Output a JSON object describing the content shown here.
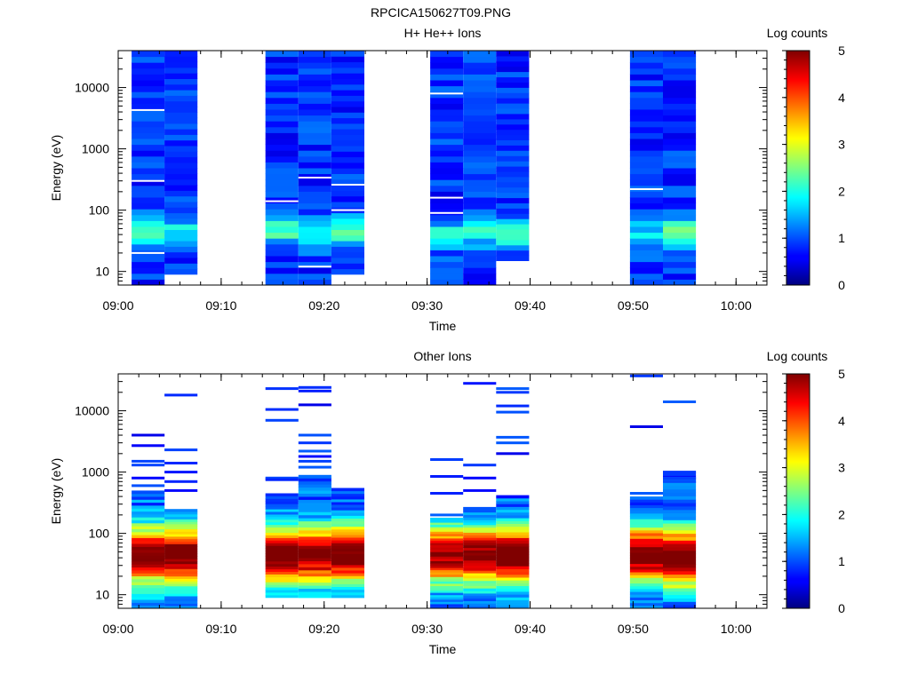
{
  "figure_title": "RPCICA150627T09.PNG",
  "chart_data": [
    {
      "type": "heatmap",
      "title": "H+ He++ Ions",
      "xlabel": "Time",
      "ylabel": "Energy (eV)",
      "y_scale": "log",
      "ylim": [
        6,
        40000
      ],
      "xlim": [
        "09:00",
        "10:03"
      ],
      "x_ticks": [
        "09:00",
        "09:10",
        "09:20",
        "09:30",
        "09:40",
        "09:50",
        "10:00"
      ],
      "y_ticks": [
        "10",
        "100",
        "1000",
        "10000"
      ],
      "colorbar": {
        "label": "Log counts",
        "range": [
          0,
          5
        ],
        "ticks": [
          "0",
          "1",
          "2",
          "3",
          "4",
          "5"
        ]
      },
      "columns": [
        {
          "start": "09:01.3",
          "end": "09:04.5",
          "emin": 6,
          "emax": 40000,
          "peak_energy": 45,
          "peak_level": 2.1,
          "gaps": [
            300,
            4300,
            20
          ]
        },
        {
          "start": "09:04.5",
          "end": "09:07.7",
          "emin": 9,
          "emax": 40000,
          "peak_energy": 45,
          "peak_level": 1.8,
          "gaps": []
        },
        {
          "start": "09:14.3",
          "end": "09:17.5",
          "emin": 6,
          "emax": 40000,
          "peak_energy": 50,
          "peak_level": 2.2,
          "gaps": [
            140
          ]
        },
        {
          "start": "09:17.5",
          "end": "09:20.7",
          "emin": 6,
          "emax": 40000,
          "peak_energy": 45,
          "peak_level": 2.0,
          "gaps": [
            340,
            12
          ]
        },
        {
          "start": "09:20.7",
          "end": "09:23.9",
          "emin": 9,
          "emax": 40000,
          "peak_energy": 45,
          "peak_level": 2.0,
          "gaps": [
            260,
            100
          ]
        },
        {
          "start": "09:30.3",
          "end": "09:33.5",
          "emin": 6,
          "emax": 40000,
          "peak_energy": 40,
          "peak_level": 1.9,
          "gaps": [
            8000,
            160,
            90
          ]
        },
        {
          "start": "09:33.5",
          "end": "09:36.7",
          "emin": 6,
          "emax": 40000,
          "peak_energy": 50,
          "peak_level": 2.3,
          "gaps": []
        },
        {
          "start": "09:36.7",
          "end": "09:39.9",
          "emin": 15,
          "emax": 40000,
          "peak_energy": 40,
          "peak_level": 2.0,
          "gaps": []
        },
        {
          "start": "09:49.7",
          "end": "09:52.9",
          "emin": 6,
          "emax": 40000,
          "peak_energy": 40,
          "peak_level": 1.8,
          "gaps": [
            220
          ]
        },
        {
          "start": "09:52.9",
          "end": "09:56.1",
          "emin": 6,
          "emax": 40000,
          "peak_energy": 45,
          "peak_level": 2.2,
          "gaps": []
        }
      ]
    },
    {
      "type": "heatmap",
      "title": "Other Ions",
      "xlabel": "Time",
      "ylabel": "Energy (eV)",
      "y_scale": "log",
      "ylim": [
        6,
        40000
      ],
      "xlim": [
        "09:00",
        "10:03"
      ],
      "x_ticks": [
        "09:00",
        "09:10",
        "09:20",
        "09:30",
        "09:40",
        "09:50",
        "10:00"
      ],
      "y_ticks": [
        "10",
        "100",
        "1000",
        "10000"
      ],
      "colorbar": {
        "label": "Log counts",
        "range": [
          0,
          5
        ],
        "ticks": [
          "0",
          "1",
          "2",
          "3",
          "4",
          "5"
        ]
      },
      "columns": [
        {
          "start": "09:01.3",
          "end": "09:04.5",
          "emin": 6,
          "dense_top": 500,
          "peak_energy": 45,
          "peak_level": 4.3,
          "lines": [
            4000,
            2700,
            1500,
            1300,
            800,
            600
          ]
        },
        {
          "start": "09:04.5",
          "end": "09:07.7",
          "emin": 6,
          "dense_top": 250,
          "peak_energy": 45,
          "peak_level": 4.2,
          "lines": [
            18000,
            2300,
            1400,
            1000,
            700,
            500
          ]
        },
        {
          "start": "09:14.3",
          "end": "09:17.5",
          "emin": 9,
          "dense_top": 450,
          "peak_energy": 45,
          "peak_level": 4.4,
          "lines": [
            23000,
            10500,
            7000,
            800,
            750
          ]
        },
        {
          "start": "09:17.5",
          "end": "09:20.7",
          "emin": 9,
          "dense_top": 900,
          "peak_energy": 45,
          "peak_level": 4.1,
          "lines": [
            24000,
            21000,
            12500,
            4000,
            3000,
            2200,
            1800,
            1500,
            1200
          ]
        },
        {
          "start": "09:20.7",
          "end": "09:23.9",
          "emin": 9,
          "dense_top": 550,
          "peak_energy": 45,
          "peak_level": 4.3,
          "lines": []
        },
        {
          "start": "09:30.3",
          "end": "09:33.5",
          "emin": 6,
          "dense_top": 180,
          "peak_energy": 45,
          "peak_level": 4.0,
          "lines": [
            1600,
            850,
            450,
            200
          ]
        },
        {
          "start": "09:33.5",
          "end": "09:36.7",
          "emin": 6,
          "dense_top": 270,
          "peak_energy": 45,
          "peak_level": 4.2,
          "lines": [
            28000,
            1300,
            800,
            500
          ]
        },
        {
          "start": "09:36.7",
          "end": "09:39.9",
          "emin": 6,
          "dense_top": 420,
          "peak_energy": 45,
          "peak_level": 4.3,
          "lines": [
            23000,
            20000,
            12000,
            9500,
            3700,
            3000,
            2000
          ]
        },
        {
          "start": "09:49.7",
          "end": "09:52.9",
          "emin": 6,
          "dense_top": 400,
          "peak_energy": 45,
          "peak_level": 4.3,
          "lines": [
            37000,
            5500,
            450
          ]
        },
        {
          "start": "09:52.9",
          "end": "09:56.1",
          "emin": 6,
          "dense_top": 1000,
          "peak_energy": 40,
          "peak_level": 4.5,
          "lines": [
            14000,
            1000,
            800,
            700
          ]
        }
      ]
    }
  ]
}
